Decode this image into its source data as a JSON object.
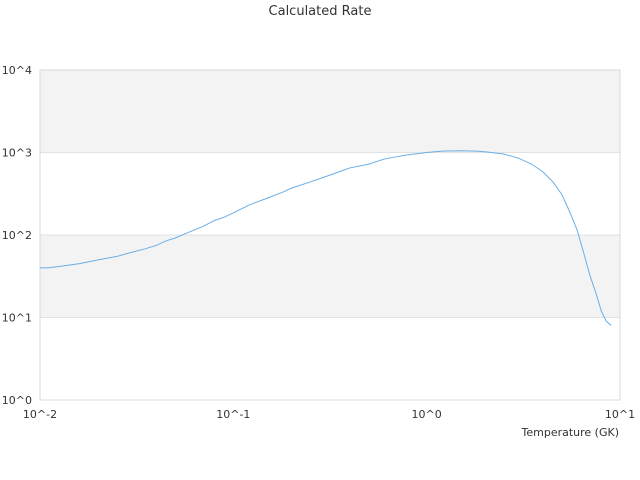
{
  "chart_data": {
    "type": "line",
    "title": "Calculated Rate",
    "xlabel": "Temperature (GK)",
    "ylabel": "",
    "x_scale": "log",
    "y_scale": "log",
    "xlim": [
      0.01,
      10
    ],
    "ylim": [
      1,
      10000
    ],
    "grid": true,
    "band_fill": "#f3f3f3",
    "x_tick_values": [
      0.01,
      0.1,
      1,
      10
    ],
    "x_tick_labels": [
      "10^-2",
      "10^-1",
      "10^0",
      "10^1"
    ],
    "y_tick_values": [
      1,
      10,
      100,
      1000,
      10000
    ],
    "y_tick_labels": [
      "10^0",
      "10^1",
      "10^2",
      "10^3",
      "10^4"
    ],
    "series": [
      {
        "color": "#6aaee6",
        "x": [
          0.01,
          0.011,
          0.013,
          0.016,
          0.02,
          0.025,
          0.03,
          0.035,
          0.04,
          0.045,
          0.05,
          0.06,
          0.07,
          0.08,
          0.09,
          0.1,
          0.12,
          0.15,
          0.18,
          0.2,
          0.25,
          0.3,
          0.35,
          0.4,
          0.5,
          0.6,
          0.7,
          0.8,
          0.9,
          1.0,
          1.2,
          1.5,
          1.8,
          2.0,
          2.5,
          3.0,
          3.5,
          4.0,
          4.5,
          5.0,
          5.5,
          6.0,
          6.5,
          7.0,
          7.5,
          8.0,
          8.5,
          9.0
        ],
        "y": [
          40,
          40,
          42,
          45,
          50,
          55,
          62,
          68,
          75,
          85,
          92,
          110,
          128,
          150,
          165,
          185,
          230,
          280,
          330,
          370,
          440,
          510,
          580,
          650,
          720,
          830,
          890,
          940,
          970,
          1000,
          1040,
          1050,
          1040,
          1020,
          960,
          850,
          720,
          580,
          440,
          310,
          190,
          115,
          60,
          32,
          20,
          12,
          9,
          8
        ]
      }
    ]
  }
}
